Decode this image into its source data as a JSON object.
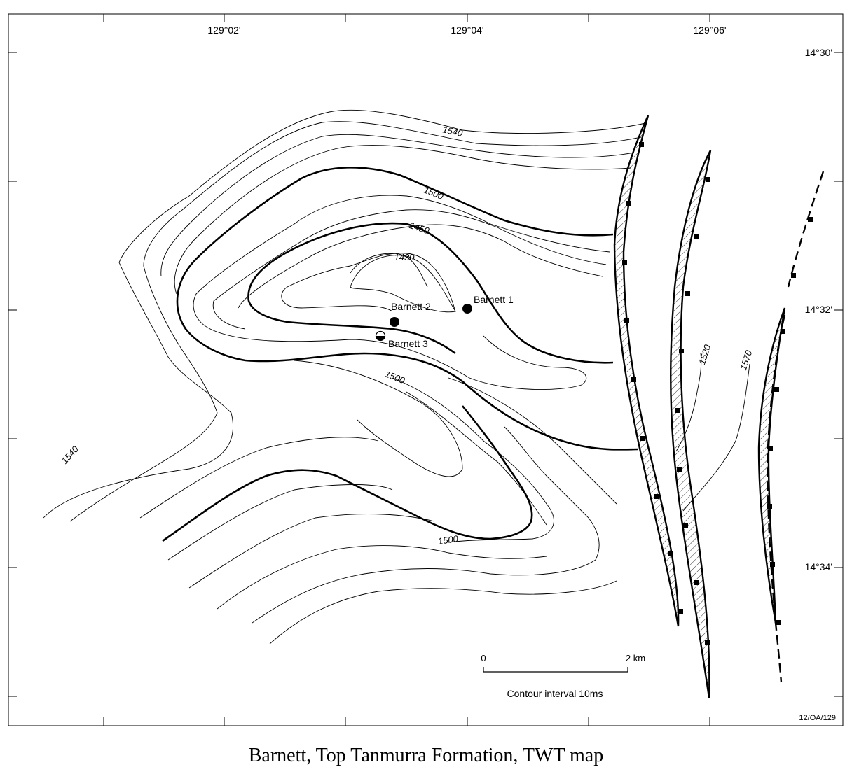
{
  "caption": "Barnett, Top Tanmurra Formation, TWT map",
  "figure_code": "12/OA/129",
  "longitude_labels": [
    "129°02'",
    "129°04'",
    "129°06'"
  ],
  "latitude_labels": [
    "14°30'",
    "14°32'",
    "14°34'"
  ],
  "contour_labels": [
    "1540",
    "1500",
    "1450",
    "1430",
    "1500",
    "1500",
    "1540",
    "1520",
    "1570"
  ],
  "wells": [
    {
      "name": "Barnett 1",
      "symbol": "filled"
    },
    {
      "name": "Barnett 2",
      "symbol": "filled"
    },
    {
      "name": "Barnett 3",
      "symbol": "half-filled"
    }
  ],
  "scale_bar": {
    "start": "0",
    "end": "2 km"
  },
  "contour_interval": "Contour interval 10ms",
  "colors": {
    "ink": "#000000",
    "paper": "#ffffff"
  }
}
